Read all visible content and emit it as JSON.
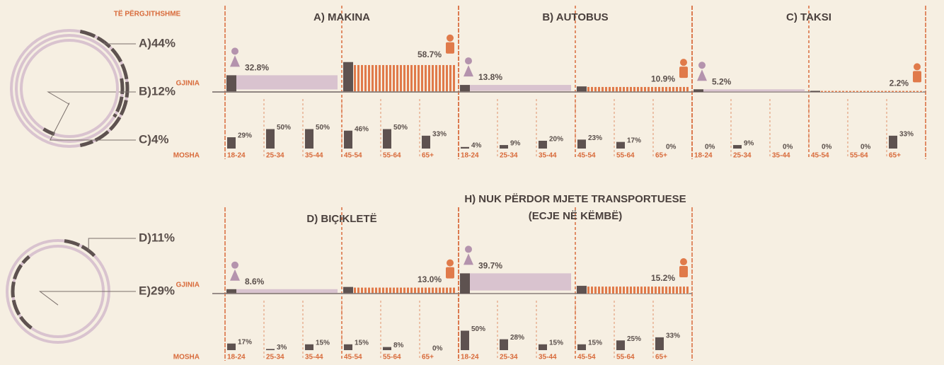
{
  "overall_label": "TË PËRGJITHSHME",
  "overall_top": [
    {
      "label": "A)44%",
      "value": 44
    },
    {
      "label": "B)12%",
      "value": 12
    },
    {
      "label": "C)4%",
      "value": 4
    }
  ],
  "overall_bottom": [
    {
      "label": "D)11%",
      "value": 11
    },
    {
      "label": "E)29%",
      "value": 29
    }
  ],
  "gender_label": "GJINIA",
  "age_label": "MOSHA",
  "age_groups": [
    "18-24",
    "25-34",
    "35-44",
    "45-54",
    "55-64",
    "65+"
  ],
  "modes": [
    {
      "title": "A) MAKINA",
      "female": 32.8,
      "female_label": "32.8%",
      "male": 58.7,
      "male_label": "58.7%",
      "ages": [
        29,
        50,
        50,
        46,
        50,
        33
      ],
      "age_labels": [
        "29%",
        "50%",
        "50%",
        "46%",
        "50%",
        "33%"
      ]
    },
    {
      "title": "B) AUTOBUS",
      "female": 13.8,
      "female_label": "13.8%",
      "male": 10.9,
      "male_label": "10.9%",
      "ages": [
        4,
        9,
        20,
        23,
        17,
        0
      ],
      "age_labels": [
        "4%",
        "9%",
        "20%",
        "23%",
        "17%",
        "0%"
      ]
    },
    {
      "title": "C) TAKSI",
      "female": 5.2,
      "female_label": "5.2%",
      "male": 2.2,
      "male_label": "2.2%",
      "ages": [
        0,
        9,
        0,
        0,
        0,
        33
      ],
      "age_labels": [
        "0%",
        "9%",
        "0%",
        "0%",
        "0%",
        "33%"
      ]
    },
    {
      "title": "D) BIÇIKLETË",
      "female": 8.6,
      "female_label": "8.6%",
      "male": 13.0,
      "male_label": "13.0%",
      "ages": [
        17,
        3,
        15,
        15,
        8,
        0
      ],
      "age_labels": [
        "17%",
        "3%",
        "15%",
        "15%",
        "8%",
        "0%"
      ]
    },
    {
      "title": "H) NUK PËRDOR MJETE TRANSPORTUESE",
      "subtitle": "(ECJE NË KËMBË)",
      "female": 39.7,
      "female_label": "39.7%",
      "male": 15.2,
      "male_label": "15.2%",
      "ages": [
        50,
        28,
        15,
        15,
        25,
        33
      ],
      "age_labels": [
        "50%",
        "28%",
        "15%",
        "15%",
        "25%",
        "33%"
      ]
    }
  ]
}
